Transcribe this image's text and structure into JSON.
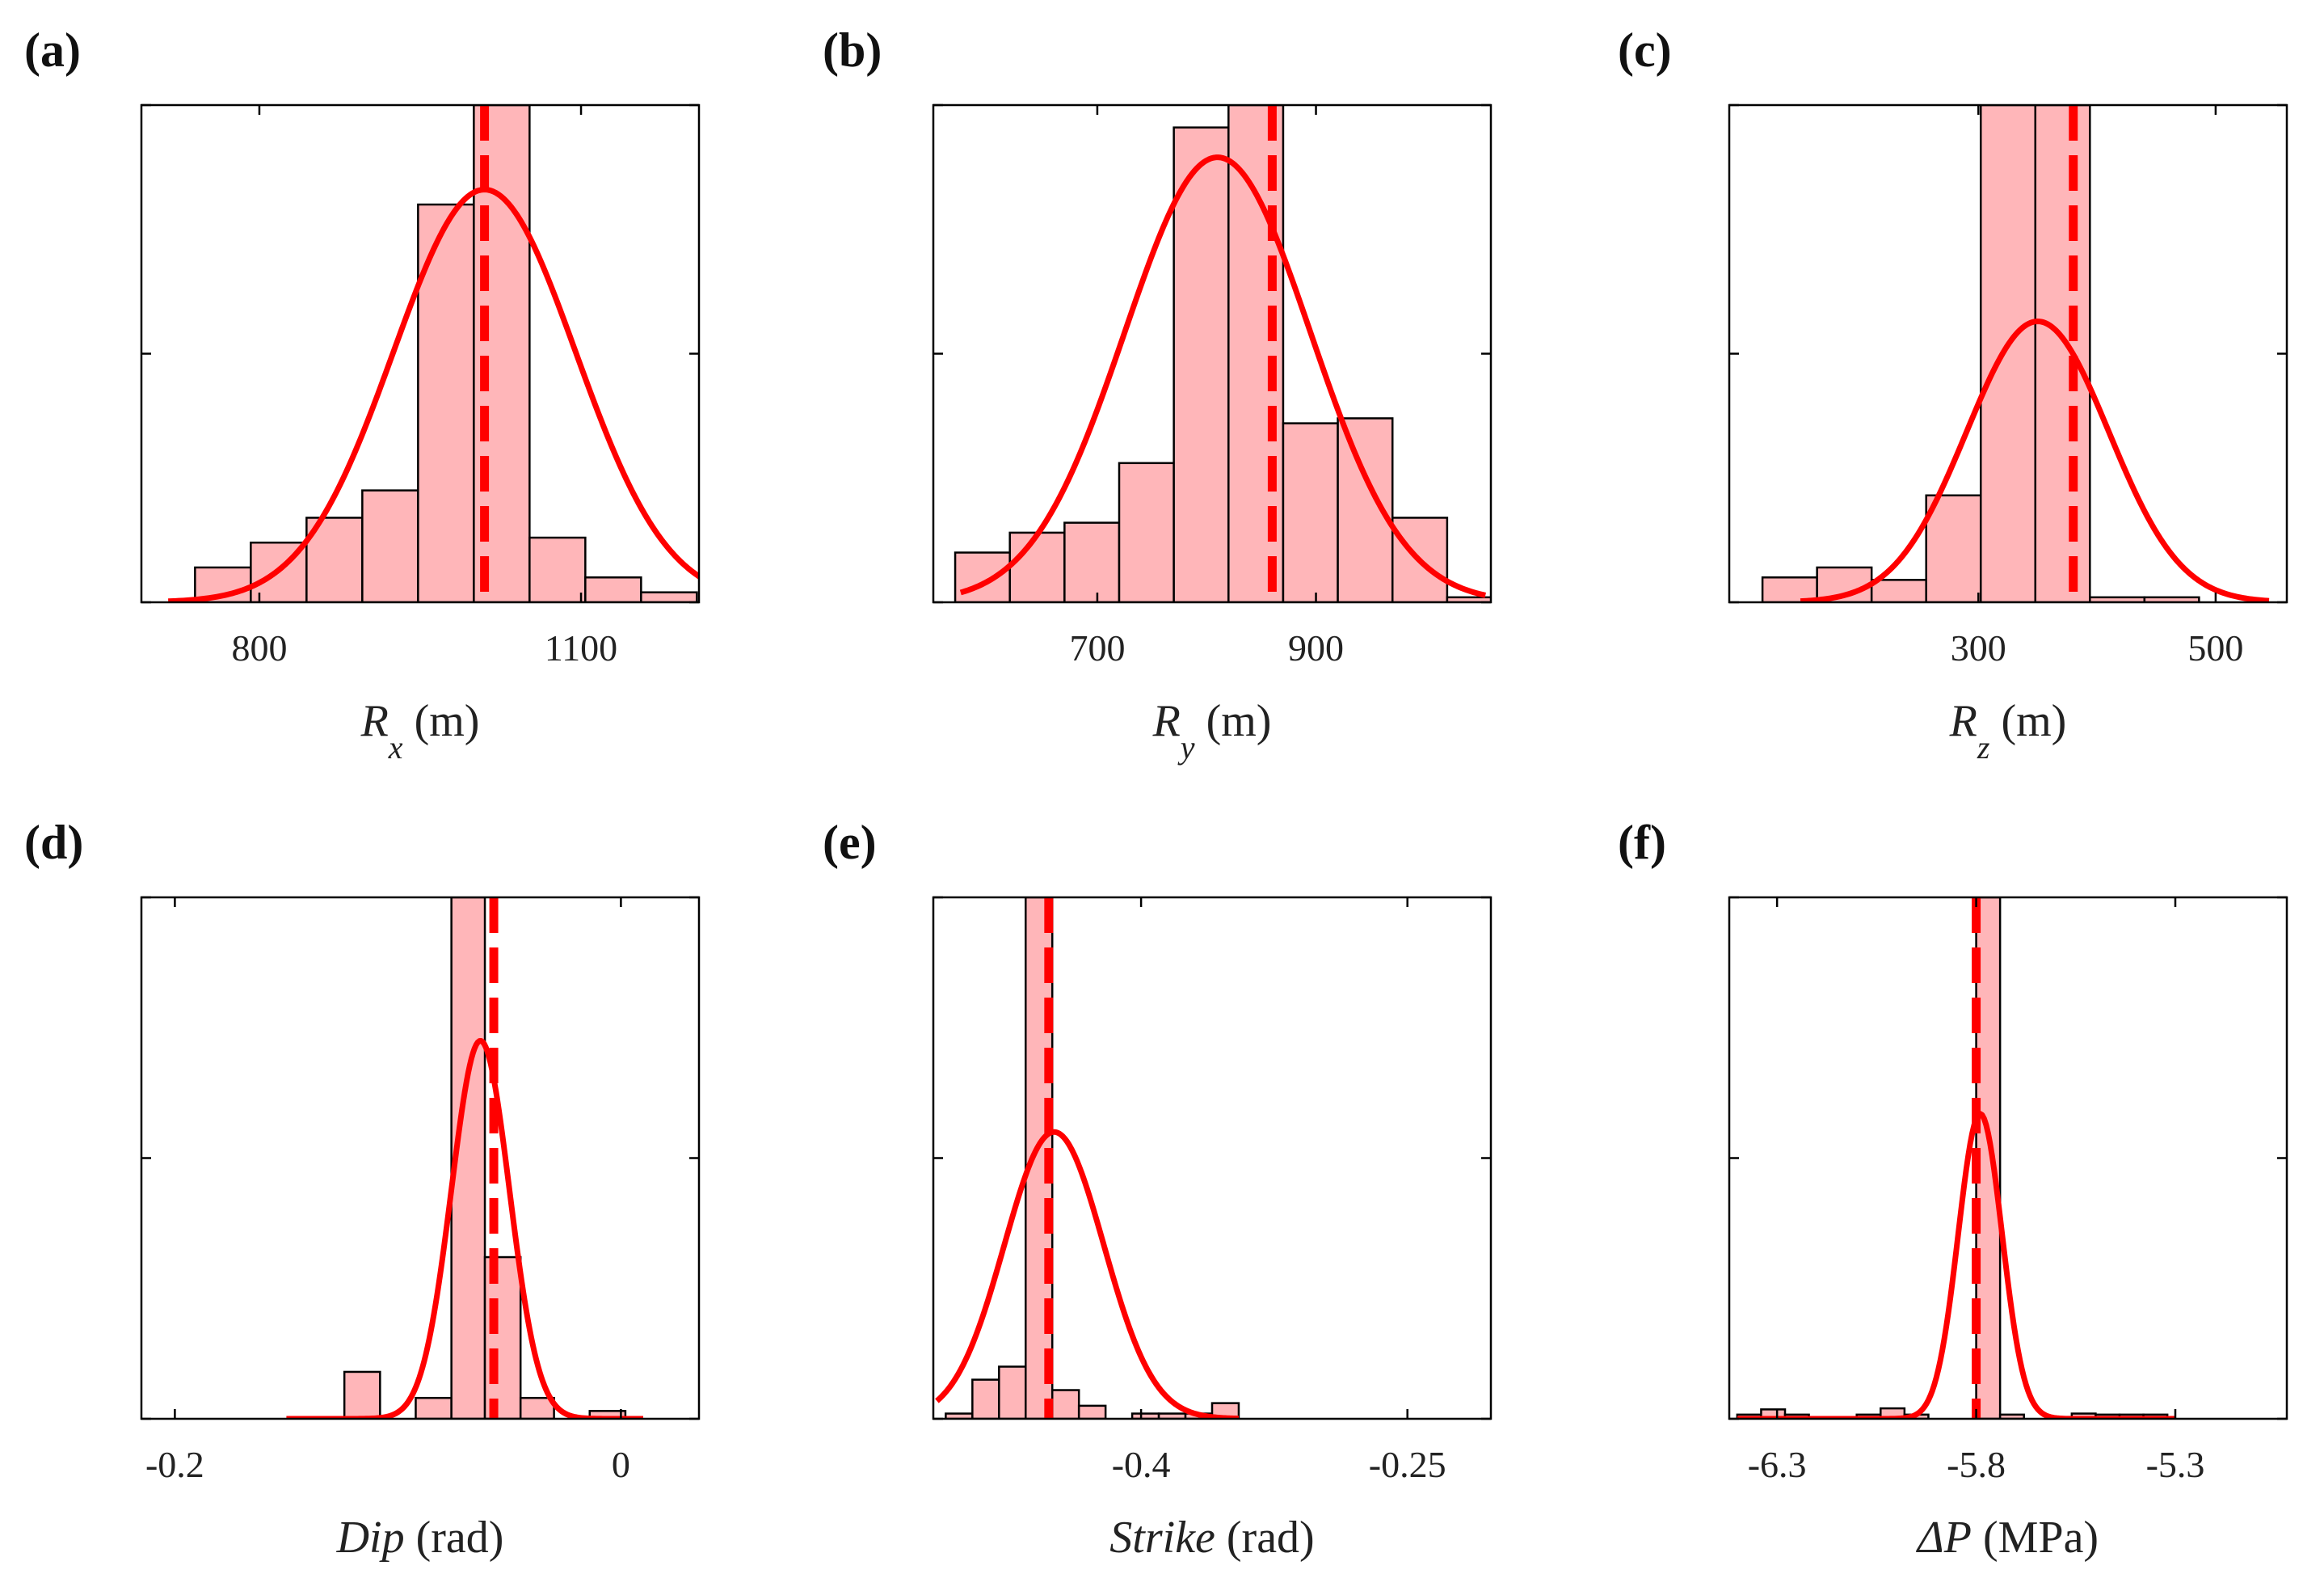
{
  "chart_data": [
    {
      "type": "bar",
      "panel_label": "(a)",
      "title": "",
      "xlabel": {
        "symbol": "R",
        "sub": "x",
        "unit": " (m)"
      },
      "xlim": [
        690,
        1210
      ],
      "xticks": [
        800,
        1100
      ],
      "ymax": 1.0,
      "bins": [
        {
          "x0": 740,
          "x1": 792,
          "y": 0.07
        },
        {
          "x0": 792,
          "x1": 844,
          "y": 0.12
        },
        {
          "x0": 844,
          "x1": 896,
          "y": 0.17
        },
        {
          "x0": 896,
          "x1": 948,
          "y": 0.225
        },
        {
          "x0": 948,
          "x1": 1000,
          "y": 0.8
        },
        {
          "x0": 1000,
          "x1": 1052,
          "y": 1.0
        },
        {
          "x0": 1052,
          "x1": 1104,
          "y": 0.13
        },
        {
          "x0": 1104,
          "x1": 1156,
          "y": 0.05
        },
        {
          "x0": 1156,
          "x1": 1208,
          "y": 0.02
        }
      ],
      "fit": {
        "mean": 1010,
        "sd": 85,
        "peak": 0.83,
        "xmin": 715,
        "xmax": 1240
      },
      "mean_line": 1010
    },
    {
      "type": "bar",
      "panel_label": "(b)",
      "title": "",
      "xlabel": {
        "symbol": "R",
        "sub": "y",
        "unit": " (m)"
      },
      "xlim": [
        550,
        1060
      ],
      "xticks": [
        700,
        900
      ],
      "ymax": 1.0,
      "bins": [
        {
          "x0": 570,
          "x1": 620,
          "y": 0.1
        },
        {
          "x0": 620,
          "x1": 670,
          "y": 0.14
        },
        {
          "x0": 670,
          "x1": 720,
          "y": 0.16
        },
        {
          "x0": 720,
          "x1": 770,
          "y": 0.28
        },
        {
          "x0": 770,
          "x1": 820,
          "y": 0.955
        },
        {
          "x0": 820,
          "x1": 870,
          "y": 1.0
        },
        {
          "x0": 870,
          "x1": 920,
          "y": 0.36
        },
        {
          "x0": 920,
          "x1": 970,
          "y": 0.37
        },
        {
          "x0": 970,
          "x1": 1020,
          "y": 0.17
        },
        {
          "x0": 1020,
          "x1": 1070,
          "y": 0.01
        }
      ],
      "fit": {
        "mean": 810,
        "sd": 85,
        "peak": 0.895,
        "xmin": 575,
        "xmax": 1055
      },
      "mean_line": 860
    },
    {
      "type": "bar",
      "panel_label": "(c)",
      "title": "",
      "xlabel": {
        "symbol": "R",
        "sub": "z",
        "unit": " (m)"
      },
      "xlim": [
        90,
        560
      ],
      "xticks": [
        300,
        500
      ],
      "ymax": 1.0,
      "bins": [
        {
          "x0": 118,
          "x1": 164,
          "y": 0.05
        },
        {
          "x0": 164,
          "x1": 210,
          "y": 0.07
        },
        {
          "x0": 210,
          "x1": 256,
          "y": 0.045
        },
        {
          "x0": 256,
          "x1": 302,
          "y": 0.215
        },
        {
          "x0": 302,
          "x1": 348,
          "y": 1.0
        },
        {
          "x0": 348,
          "x1": 394,
          "y": 1.0
        },
        {
          "x0": 394,
          "x1": 440,
          "y": 0.01
        },
        {
          "x0": 440,
          "x1": 486,
          "y": 0.01
        }
      ],
      "fit": {
        "mean": 350,
        "sd": 60,
        "peak": 0.565,
        "xmin": 150,
        "xmax": 545
      },
      "mean_line": 380
    },
    {
      "type": "bar",
      "panel_label": "(d)",
      "title": "",
      "xlabel": {
        "symbol": "Dip",
        "sub": "",
        "unit": " (rad)"
      },
      "xlim": [
        -0.215,
        0.035
      ],
      "xticks": [
        -0.2,
        0
      ],
      "xtick_labels": [
        "-0.2",
        "0"
      ],
      "ymax": 1.0,
      "bins": [
        {
          "x0": -0.124,
          "x1": -0.108,
          "y": 0.09
        },
        {
          "x0": -0.092,
          "x1": -0.076,
          "y": 0.04
        },
        {
          "x0": -0.076,
          "x1": -0.061,
          "y": 1.0
        },
        {
          "x0": -0.061,
          "x1": -0.045,
          "y": 0.31
        },
        {
          "x0": -0.045,
          "x1": -0.03,
          "y": 0.04
        },
        {
          "x0": -0.014,
          "x1": 0.002,
          "y": 0.015
        }
      ],
      "fit": {
        "mean": -0.063,
        "sd": 0.013,
        "peak": 0.725,
        "xmin": -0.15,
        "xmax": 0.01
      },
      "mean_line": -0.057
    },
    {
      "type": "bar",
      "panel_label": "(e)",
      "title": "",
      "xlabel": {
        "symbol": "Strike",
        "sub": "",
        "unit": " (rad)"
      },
      "xlim": [
        -0.517,
        -0.203
      ],
      "xticks": [
        -0.4,
        -0.25
      ],
      "xtick_labels": [
        "-0.4",
        "-0.25"
      ],
      "ymax": 1.0,
      "bins": [
        {
          "x0": -0.51,
          "x1": -0.495,
          "y": 0.01
        },
        {
          "x0": -0.495,
          "x1": -0.48,
          "y": 0.075
        },
        {
          "x0": -0.48,
          "x1": -0.465,
          "y": 0.1
        },
        {
          "x0": -0.465,
          "x1": -0.45,
          "y": 1.0
        },
        {
          "x0": -0.45,
          "x1": -0.435,
          "y": 0.055
        },
        {
          "x0": -0.435,
          "x1": -0.42,
          "y": 0.025
        },
        {
          "x0": -0.405,
          "x1": -0.39,
          "y": 0.01
        },
        {
          "x0": -0.39,
          "x1": -0.375,
          "y": 0.01
        },
        {
          "x0": -0.375,
          "x1": -0.36,
          "y": 0.01
        },
        {
          "x0": -0.36,
          "x1": -0.345,
          "y": 0.03
        }
      ],
      "fit": {
        "mean": -0.449,
        "sd": 0.028,
        "peak": 0.55,
        "xmin": -0.515,
        "xmax": -0.345
      },
      "mean_line": -0.452
    },
    {
      "type": "bar",
      "panel_label": "(f)",
      "title": "",
      "xlabel": {
        "symbol": "ΔP",
        "sub": "",
        "unit": " (MPa)"
      },
      "xlim": [
        -6.42,
        -5.02
      ],
      "xticks": [
        -6.3,
        -5.8,
        -5.3
      ],
      "xtick_labels": [
        "-6.3",
        "-5.8",
        "-5.3"
      ],
      "ymax": 1.0,
      "bins": [
        {
          "x0": -6.4,
          "x1": -6.34,
          "y": 0.008
        },
        {
          "x0": -6.34,
          "x1": -6.28,
          "y": 0.018
        },
        {
          "x0": -6.28,
          "x1": -6.22,
          "y": 0.008
        },
        {
          "x0": -6.1,
          "x1": -6.04,
          "y": 0.008
        },
        {
          "x0": -6.04,
          "x1": -5.98,
          "y": 0.02
        },
        {
          "x0": -5.98,
          "x1": -5.92,
          "y": 0.008
        },
        {
          "x0": -5.8,
          "x1": -5.74,
          "y": 1.0
        },
        {
          "x0": -5.74,
          "x1": -5.68,
          "y": 0.008
        },
        {
          "x0": -5.56,
          "x1": -5.5,
          "y": 0.01
        },
        {
          "x0": -5.5,
          "x1": -5.44,
          "y": 0.008
        },
        {
          "x0": -5.44,
          "x1": -5.38,
          "y": 0.008
        },
        {
          "x0": -5.38,
          "x1": -5.32,
          "y": 0.008
        }
      ],
      "fit": {
        "mean": -5.79,
        "sd": 0.055,
        "peak": 0.585,
        "xmin": -6.4,
        "xmax": -5.3
      },
      "mean_line": -5.8
    }
  ]
}
